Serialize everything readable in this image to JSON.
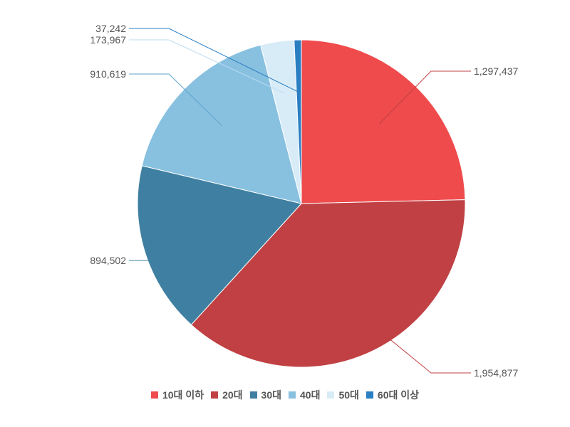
{
  "chart_data": {
    "type": "pie",
    "title": "",
    "categories": [
      "10대 이하",
      "20대",
      "30대",
      "40대",
      "50대",
      "60대 이상"
    ],
    "values": [
      1297437,
      1954877,
      894502,
      910619,
      173967,
      37242
    ],
    "value_labels": [
      "1,297,437",
      "1,954,877",
      "894,502",
      "910,619",
      "173,967",
      "37,242"
    ],
    "colors": [
      "#ef4b4c",
      "#c04043",
      "#3f80a2",
      "#88c0e0",
      "#d8ecf8",
      "#2a7ec2"
    ],
    "start_angle_deg": 0,
    "direction": "clockwise",
    "legend_position": "bottom"
  }
}
